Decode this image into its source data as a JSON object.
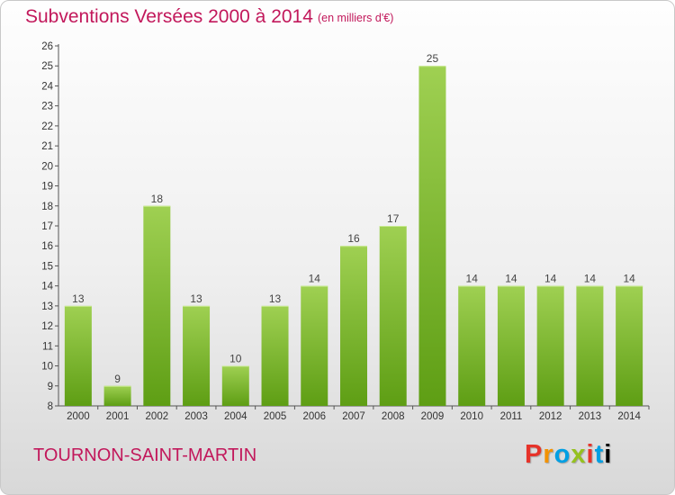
{
  "title": "Subventions Versées 2000 à 2014",
  "unit": "(en milliers d'€)",
  "commune": "TOURNON-SAINT-MARTIN",
  "logo_letters": [
    "P",
    "r",
    "o",
    "x",
    "i",
    "t",
    "i"
  ],
  "colors": {
    "title": "#c2185b",
    "bar_light": "#9fd052",
    "bar_dark": "#5e9e14"
  },
  "chart_data": {
    "type": "bar",
    "title": "Subventions Versées 2000 à 2014",
    "subtitle": "(en milliers d'€)",
    "categories": [
      "2000",
      "2001",
      "2002",
      "2003",
      "2004",
      "2005",
      "2006",
      "2007",
      "2008",
      "2009",
      "2010",
      "2011",
      "2012",
      "2013",
      "2014"
    ],
    "values": [
      13,
      9,
      18,
      13,
      10,
      13,
      14,
      16,
      17,
      25,
      14,
      14,
      14,
      14,
      14
    ],
    "xlabel": "",
    "ylabel": "",
    "ylim": [
      8,
      26
    ],
    "yticks": [
      8,
      9,
      10,
      11,
      12,
      13,
      14,
      15,
      16,
      17,
      18,
      19,
      20,
      21,
      22,
      23,
      24,
      25,
      26
    ],
    "grid": false,
    "data_labels": true
  }
}
